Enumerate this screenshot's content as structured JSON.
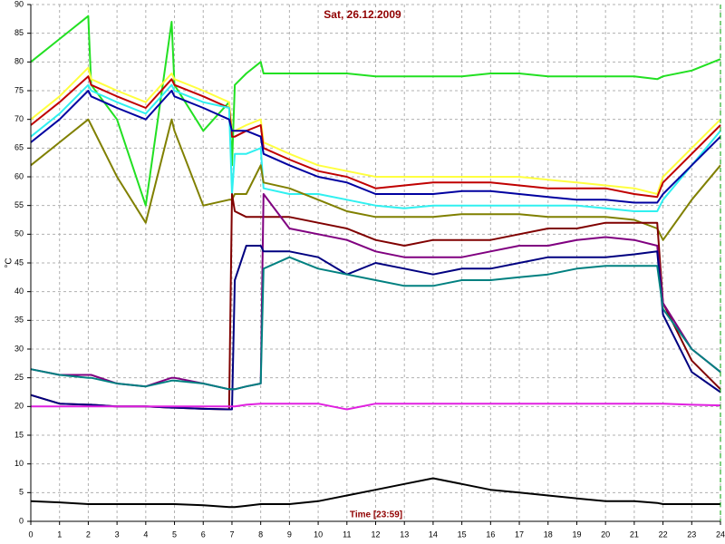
{
  "chart_data": {
    "type": "line",
    "title": "Sat, 26.12.2009",
    "xlabel": "Time [23:59]",
    "ylabel": "°C",
    "x": [
      0,
      1,
      2,
      2.1,
      3,
      4,
      4.9,
      5,
      6,
      6.9,
      7,
      7.1,
      7.5,
      8,
      8.1,
      9,
      10,
      11,
      12,
      13,
      14,
      15,
      16,
      17,
      18,
      19,
      20,
      21,
      21.8,
      22,
      23,
      24
    ],
    "xlim": [
      0,
      24
    ],
    "xticks": [
      0,
      1,
      2,
      3,
      4,
      5,
      6,
      7,
      8,
      9,
      10,
      11,
      12,
      13,
      14,
      15,
      16,
      17,
      18,
      19,
      20,
      21,
      22,
      23,
      24
    ],
    "ylim": [
      0,
      90
    ],
    "yticks": [
      0,
      5,
      10,
      15,
      20,
      25,
      30,
      35,
      40,
      45,
      50,
      55,
      60,
      65,
      70,
      75,
      80,
      85,
      90
    ],
    "grid": true,
    "series": [
      {
        "color": "#22e022",
        "values": [
          80,
          84,
          88,
          76,
          70,
          55,
          87,
          76,
          68,
          73,
          62,
          76,
          78,
          80,
          78,
          78,
          78,
          78,
          77.5,
          77.5,
          77.5,
          77.5,
          78,
          78,
          77.5,
          77.5,
          77.5,
          77.5,
          77,
          77.5,
          78.5,
          80.5
        ]
      },
      {
        "color": "#ffff40",
        "values": [
          70,
          74,
          79,
          77,
          75,
          73,
          78,
          77,
          75,
          73,
          68,
          68,
          69,
          70,
          66,
          64,
          62,
          61,
          60,
          60,
          60,
          60,
          60,
          60,
          59.5,
          59,
          58.5,
          58,
          57,
          60,
          65,
          70
        ]
      },
      {
        "color": "#c00000",
        "values": [
          69,
          73,
          77.5,
          76,
          74,
          72,
          77,
          76,
          74,
          72,
          67,
          67,
          68,
          69,
          65,
          63,
          61,
          60,
          58,
          58.5,
          59,
          59,
          59,
          58.5,
          58,
          58,
          58,
          57,
          56.5,
          59,
          64,
          69
        ]
      },
      {
        "color": "#30f0f0",
        "values": [
          67,
          71,
          76,
          75,
          73,
          71,
          76,
          75,
          73,
          72,
          57,
          64,
          64,
          65,
          58,
          57,
          57,
          56,
          55,
          54.5,
          55,
          55,
          55,
          55,
          55,
          55,
          54.5,
          54,
          54,
          56,
          62,
          68
        ]
      },
      {
        "color": "#0000a0",
        "values": [
          66,
          70,
          75,
          74,
          72,
          70,
          75,
          74,
          72,
          70,
          68,
          68,
          68,
          67,
          64,
          62,
          60,
          59,
          57,
          57,
          57,
          57.5,
          57.5,
          57,
          56.5,
          56,
          56,
          55.5,
          55.5,
          57,
          62,
          67
        ]
      },
      {
        "color": "#808000",
        "values": [
          62,
          66,
          70,
          69,
          60,
          52,
          70,
          68,
          55,
          56,
          56,
          57,
          57,
          62,
          59,
          58,
          56,
          54,
          53,
          53,
          53,
          53.5,
          53.5,
          53.5,
          53,
          53,
          53,
          52.5,
          51,
          49,
          56,
          62
        ]
      },
      {
        "color": "#800000",
        "values": [
          22,
          20.5,
          20.3,
          20.3,
          20,
          20,
          19.8,
          19.8,
          19.6,
          19.5,
          57,
          54,
          53,
          53,
          53,
          53,
          52,
          51,
          49,
          48,
          49,
          49,
          49,
          50,
          51,
          51,
          52,
          52,
          52,
          38,
          28,
          23
        ]
      },
      {
        "color": "#800080",
        "values": [
          26.5,
          25.5,
          25.5,
          25.5,
          24,
          23.5,
          25,
          25,
          24,
          23,
          23,
          23,
          23.5,
          24,
          57,
          51,
          50,
          49,
          47,
          46,
          46,
          46,
          47,
          48,
          48,
          49,
          49.5,
          49,
          48,
          38,
          30,
          26
        ]
      },
      {
        "color": "#000080",
        "values": [
          22,
          20.5,
          20.3,
          20.3,
          20,
          20,
          19.8,
          19.8,
          19.6,
          19.5,
          19.5,
          42,
          48,
          48,
          47,
          47,
          46,
          43,
          45,
          44,
          43,
          44,
          44,
          45,
          46,
          46,
          46,
          46.5,
          47,
          36,
          26,
          22.5
        ]
      },
      {
        "color": "#008080",
        "values": [
          26.5,
          25.5,
          25,
          25,
          24,
          23.5,
          24.5,
          24.5,
          24,
          23,
          23,
          23,
          23.5,
          24,
          44,
          46,
          44,
          43,
          42,
          41,
          41,
          42,
          42,
          42.5,
          43,
          44,
          44.5,
          44.5,
          44.5,
          37,
          30,
          26
        ]
      },
      {
        "color": "#e020e0",
        "values": [
          20,
          20,
          20,
          20,
          20,
          20,
          20,
          20,
          20,
          20,
          20,
          20,
          20.3,
          20.5,
          20.5,
          20.5,
          20.5,
          19.5,
          20.5,
          20.5,
          20.5,
          20.5,
          20.5,
          20.5,
          20.5,
          20.5,
          20.5,
          20.5,
          20.5,
          20.5,
          20.3,
          20.2
        ]
      },
      {
        "color": "#000000",
        "values": [
          3.5,
          3.3,
          3,
          3,
          3,
          3,
          3,
          3,
          2.8,
          2.5,
          2.5,
          2.5,
          2.7,
          3,
          3,
          3,
          3.5,
          4.5,
          5.5,
          6.5,
          7.5,
          6.5,
          5.5,
          5,
          4.5,
          4,
          3.5,
          3.5,
          3.2,
          3,
          3,
          3
        ]
      }
    ]
  }
}
